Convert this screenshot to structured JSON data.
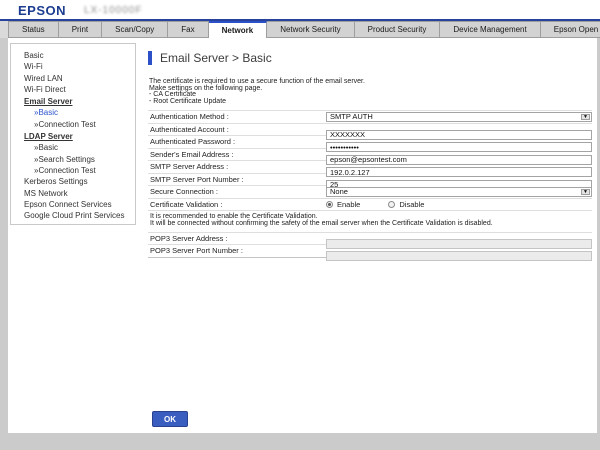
{
  "header": {
    "logo": "EPSON",
    "model_blurred": "LX-10000F"
  },
  "tabs": {
    "items": [
      {
        "label": "Status"
      },
      {
        "label": "Print"
      },
      {
        "label": "Scan/Copy"
      },
      {
        "label": "Fax"
      },
      {
        "label": "Network",
        "active": true
      },
      {
        "label": "Network Security"
      },
      {
        "label": "Product Security"
      },
      {
        "label": "Device Management"
      },
      {
        "label": "Epson Open Platform"
      }
    ]
  },
  "sidebar": {
    "items": [
      {
        "label": "Basic"
      },
      {
        "label": "Wi-Fi"
      },
      {
        "label": "Wired LAN"
      },
      {
        "label": "Wi-Fi Direct"
      },
      {
        "label": "Email Server",
        "group": true
      },
      {
        "label": "»Basic",
        "sub": true,
        "active": true
      },
      {
        "label": "»Connection Test",
        "sub": true
      },
      {
        "label": "LDAP Server",
        "group": true
      },
      {
        "label": "»Basic",
        "sub": true
      },
      {
        "label": "»Search Settings",
        "sub": true
      },
      {
        "label": "»Connection Test",
        "sub": true
      },
      {
        "label": "Kerberos Settings"
      },
      {
        "label": "MS Network"
      },
      {
        "label": "Epson Connect Services"
      },
      {
        "label": "Google Cloud Print Services"
      }
    ]
  },
  "main": {
    "title": "Email Server > Basic",
    "description": [
      "The certificate is required to use a secure function of the email server.",
      "Make settings on the following page.",
      "- CA Certificate",
      "- Root Certificate Update"
    ],
    "form": {
      "auth_method": {
        "label": "Authentication Method :",
        "value": "SMTP AUTH"
      },
      "auth_account": {
        "label": "Authenticated Account :",
        "value": "XXXXXXX"
      },
      "auth_password": {
        "label": "Authenticated Password :",
        "value": "•••••••••••"
      },
      "sender_email": {
        "label": "Sender's Email Address :",
        "value": "epson@epsontest.com"
      },
      "smtp_address": {
        "label": "SMTP Server Address :",
        "value": "192.0.2.127"
      },
      "smtp_port": {
        "label": "SMTP Server Port Number :",
        "value": "25"
      },
      "secure_connection": {
        "label": "Secure Connection :",
        "value": "None"
      },
      "cert_validation": {
        "label": "Certificate Validation :",
        "enable_label": "Enable",
        "disable_label": "Disable",
        "selected": "Enable"
      },
      "note": [
        "It is recommended to enable the Certificate Validation.",
        "It will be connected without confirming the safety of the email server when the Certificate Validation is disabled."
      ],
      "pop3_address": {
        "label": "POP3 Server Address :",
        "value": ""
      },
      "pop3_port": {
        "label": "POP3 Server Port Number :",
        "value": ""
      }
    },
    "ok_button": "OK"
  },
  "colors": {
    "brand_blue": "#1c3d8f",
    "accent_blue": "#2b50c8",
    "link_blue": "#2952cc",
    "ok_blue": "#3a5dc0",
    "page_margin_gray": "#cbcbcb"
  }
}
